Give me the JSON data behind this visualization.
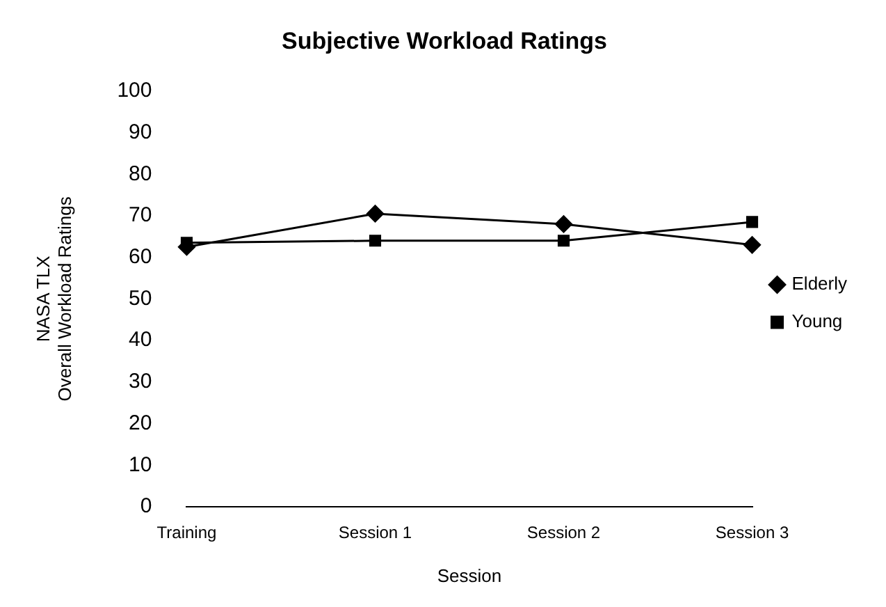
{
  "chart_data": {
    "type": "line",
    "title": "Subjective Workload Ratings",
    "xlabel": "Session",
    "ylabel": "NASA TLX\nOverall Workload Ratings",
    "categories": [
      "Training",
      "Session 1",
      "Session 2",
      "Session 3"
    ],
    "series": [
      {
        "name": "Elderly",
        "color": "#000000",
        "marker": "diamond",
        "values": [
          62.5,
          70.5,
          68,
          63
        ]
      },
      {
        "name": "Young",
        "color": "#000000",
        "marker": "square",
        "values": [
          63.5,
          64,
          64,
          68.5
        ]
      }
    ],
    "ylim": [
      0,
      100
    ],
    "yticks": [
      0,
      10,
      20,
      30,
      40,
      50,
      60,
      70,
      80,
      90,
      100
    ],
    "grid": false,
    "legend": "right",
    "line_style": "solid"
  }
}
